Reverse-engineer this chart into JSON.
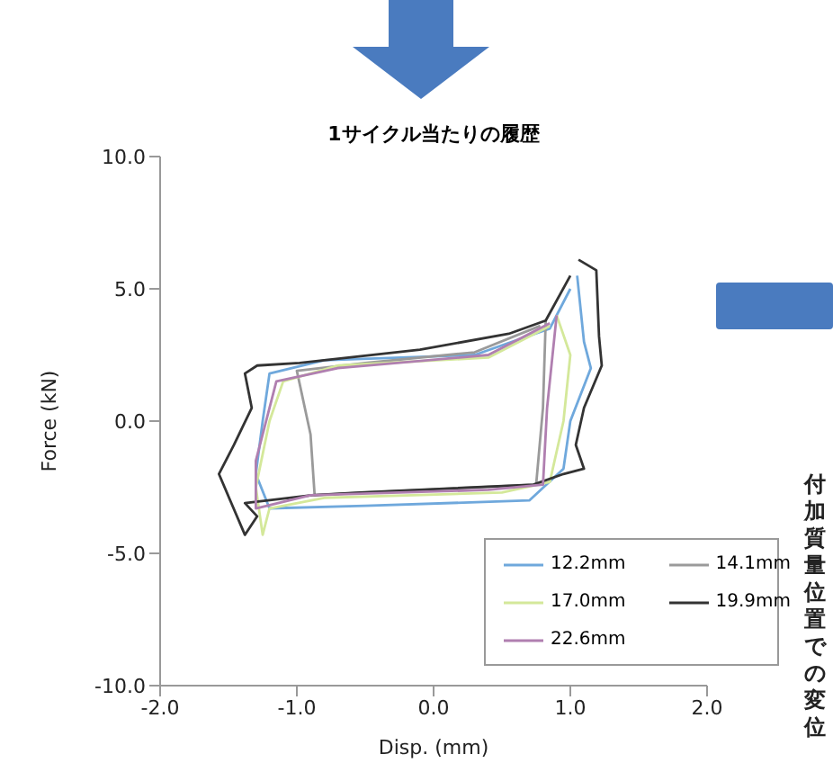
{
  "chart_data": {
    "type": "line",
    "title": "1サイクル当たりの履歴",
    "xlabel": "Disp. (mm)",
    "ylabel": "Force (kN)",
    "xlim": [
      -2,
      2
    ],
    "ylim": [
      -10,
      10
    ],
    "xticks": [
      {
        "value": -2,
        "label": "-2.0"
      },
      {
        "value": -1,
        "label": "-1.0"
      },
      {
        "value": 0,
        "label": "0.0"
      },
      {
        "value": 1,
        "label": "1.0"
      },
      {
        "value": 2,
        "label": "2.0"
      }
    ],
    "yticks": [
      {
        "value": -10,
        "label": "-10.0"
      },
      {
        "value": -5,
        "label": "-5.0"
      },
      {
        "value": 0,
        "label": "0.0"
      },
      {
        "value": 5,
        "label": "5.0"
      },
      {
        "value": 10,
        "label": "10.0"
      }
    ],
    "grid": false,
    "legend": "bottom right",
    "marker": "none",
    "line_style": "solid",
    "annotations": [
      "付加質量位置での変位"
    ],
    "series": [
      {
        "name": "12.2mm",
        "color": "#6fa8dc",
        "x": [
          1.05,
          1.1,
          1.15,
          1.0,
          0.95,
          0.7,
          -0.5,
          -1.2,
          -1.3,
          -1.25,
          -1.2,
          -0.8,
          0.3,
          0.85,
          1.0
        ],
        "values": [
          5.5,
          3,
          2,
          0,
          -1.8,
          -3,
          -3.2,
          -3.3,
          -2,
          0,
          1.8,
          2.3,
          2.5,
          3.5,
          5.0
        ]
      },
      {
        "name": "14.1mm",
        "color": "#9a9a9a",
        "x": [
          0.82,
          0.8,
          0.75,
          -0.5,
          -0.87,
          -0.9,
          -1.0,
          -0.5,
          0.3,
          0.78
        ],
        "values": [
          3.8,
          0.5,
          -2.4,
          -2.7,
          -2.8,
          -0.5,
          1.9,
          2.2,
          2.6,
          3.6
        ]
      },
      {
        "name": "17.0mm",
        "color": "#d4e89a",
        "x": [
          0.9,
          1.0,
          0.95,
          0.85,
          0.5,
          -0.8,
          -1.2,
          -1.25,
          -1.3,
          -1.2,
          -1.1,
          -0.7,
          0.4,
          0.85
        ],
        "values": [
          4.0,
          2.5,
          0,
          -2.3,
          -2.7,
          -2.9,
          -3.3,
          -4.3,
          -2.5,
          0,
          1.5,
          2.1,
          2.4,
          3.6
        ]
      },
      {
        "name": "19.9mm",
        "color": "#333333",
        "x": [
          1.06,
          1.19,
          1.21,
          1.23,
          1.1,
          1.04,
          1.1,
          0.95,
          0.73,
          -0.54,
          -0.89,
          -1.38,
          -1.29,
          -1.38,
          -1.57,
          -1.46,
          -1.33,
          -1.38,
          -1.29,
          -0.98,
          -0.1,
          0.55,
          0.82,
          1.0
        ],
        "values": [
          6.1,
          5.7,
          3.2,
          2.1,
          0.5,
          -0.9,
          -1.8,
          -2.0,
          -2.4,
          -2.7,
          -2.8,
          -3.1,
          -3.6,
          -4.3,
          -2.0,
          -0.9,
          0.5,
          1.8,
          2.1,
          2.2,
          2.7,
          3.3,
          3.8,
          5.5
        ]
      },
      {
        "name": "22.6mm",
        "color": "#b07fb0",
        "x": [
          0.9,
          0.83,
          0.8,
          0.4,
          -0.9,
          -1.3,
          -1.3,
          -1.2,
          -1.15,
          -0.7,
          0.4,
          0.85
        ],
        "values": [
          4.0,
          0.5,
          -2.4,
          -2.6,
          -2.8,
          -3.3,
          -1.5,
          0.5,
          1.5,
          2.0,
          2.5,
          3.7
        ]
      }
    ]
  }
}
